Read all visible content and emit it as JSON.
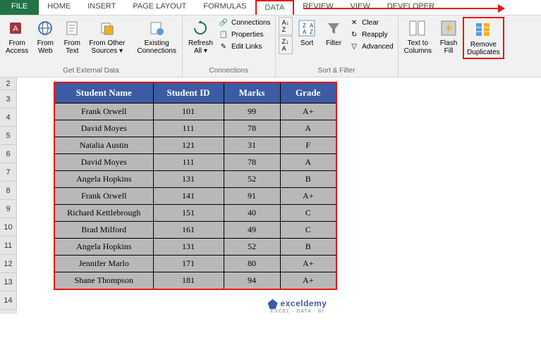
{
  "tabs": {
    "file": "FILE",
    "home": "HOME",
    "insert": "INSERT",
    "pageLayout": "PAGE LAYOUT",
    "formulas": "FORMULAS",
    "data": "DATA",
    "review": "REVIEW",
    "view": "VIEW",
    "developer": "DEVELOPER"
  },
  "ribbon": {
    "getExternal": {
      "label": "Get External Data",
      "fromAccess": "From\nAccess",
      "fromWeb": "From\nWeb",
      "fromText": "From\nText",
      "fromOther": "From Other\nSources ▾",
      "existing": "Existing\nConnections"
    },
    "connections": {
      "label": "Connections",
      "refreshAll": "Refresh\nAll ▾",
      "connections": "Connections",
      "properties": "Properties",
      "editLinks": "Edit Links"
    },
    "sortFilter": {
      "label": "Sort & Filter",
      "sortAZ": "A→Z",
      "sortZA": "Z→A",
      "sort": "Sort",
      "filter": "Filter",
      "clear": "Clear",
      "reapply": "Reapply",
      "advanced": "Advanced"
    },
    "dataTools": {
      "textToColumns": "Text to\nColumns",
      "flashFill": "Flash\nFill",
      "removeDuplicates": "Remove\nDuplicates"
    }
  },
  "rowNumbers": [
    "2",
    "3",
    "4",
    "5",
    "6",
    "7",
    "8",
    "9",
    "10",
    "11",
    "12",
    "13",
    "14"
  ],
  "table": {
    "headers": {
      "name": "Student Name",
      "id": "Student ID",
      "marks": "Marks",
      "grade": "Grade"
    },
    "rows": [
      {
        "name": "Frank Orwell",
        "id": "101",
        "marks": "99",
        "grade": "A+"
      },
      {
        "name": "David Moyes",
        "id": "111",
        "marks": "78",
        "grade": "A"
      },
      {
        "name": "Natalia Austin",
        "id": "121",
        "marks": "31",
        "grade": "F"
      },
      {
        "name": "David Moyes",
        "id": "111",
        "marks": "78",
        "grade": "A"
      },
      {
        "name": "Angela Hopkins",
        "id": "131",
        "marks": "52",
        "grade": "B"
      },
      {
        "name": "Frank Orwell",
        "id": "141",
        "marks": "91",
        "grade": "A+"
      },
      {
        "name": "Richard Kettlebrough",
        "id": "151",
        "marks": "40",
        "grade": "C"
      },
      {
        "name": "Brad Milford",
        "id": "161",
        "marks": "49",
        "grade": "C"
      },
      {
        "name": "Angela Hopkins",
        "id": "131",
        "marks": "52",
        "grade": "B"
      },
      {
        "name": "Jennifer Marlo",
        "id": "171",
        "marks": "80",
        "grade": "A+"
      },
      {
        "name": "Shane Thompson",
        "id": "181",
        "marks": "94",
        "grade": "A+"
      }
    ]
  },
  "logo": {
    "brand": "exceldemy",
    "sub": "EXCEL · DATA · BI"
  },
  "colors": {
    "excelGreen": "#217346",
    "highlightRed": "#e8160c",
    "headerBlue": "#3b5ba5",
    "cellGray": "#b8b8b8",
    "ribbonBg": "#f1f1f1"
  }
}
